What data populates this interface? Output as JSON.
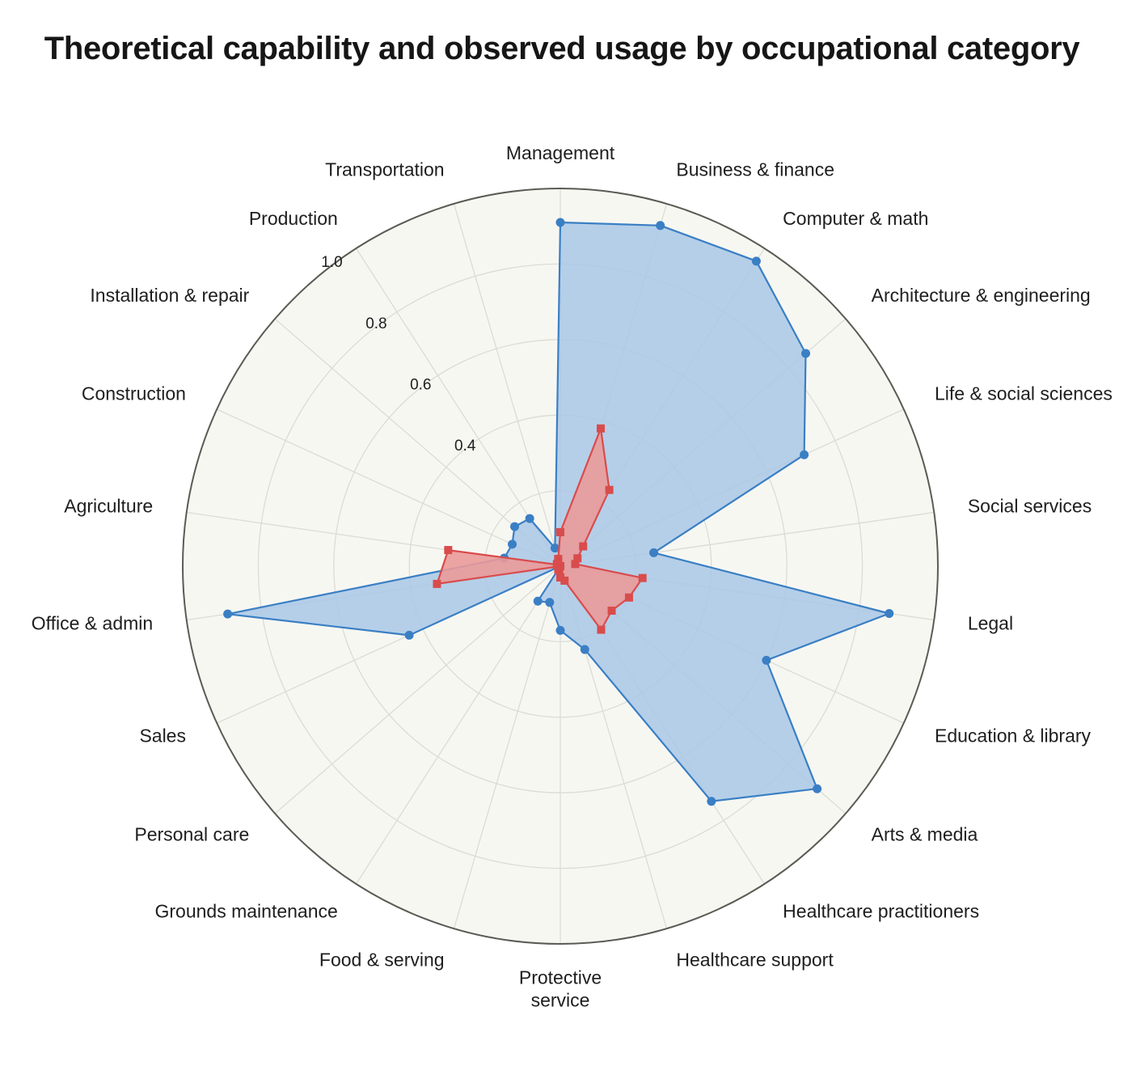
{
  "chart_data": {
    "type": "radar",
    "title": "Theoretical capability and observed usage by occupational category",
    "categories": [
      "Management",
      "Business & finance",
      "Computer & math",
      "Architecture & engineering",
      "Life & social sciences",
      "Social services",
      "Legal",
      "Education & library",
      "Arts & media",
      "Healthcare practitioners",
      "Healthcare support",
      "Protective service",
      "Food & serving",
      "Grounds maintenance",
      "Personal care",
      "Sales",
      "Office & admin",
      "Agriculture",
      "Construction",
      "Installation & repair",
      "Production",
      "Transportation"
    ],
    "series": [
      {
        "color": "#3a7fc4",
        "fill": "#a9c8e8",
        "marker": "circle",
        "values": [
          0.91,
          0.94,
          0.96,
          0.86,
          0.71,
          0.25,
          0.88,
          0.6,
          0.9,
          0.74,
          0.23,
          0.17,
          0.1,
          0.11,
          0.0,
          0.44,
          0.89,
          0.15,
          0.14,
          0.16,
          0.15,
          0.05
        ]
      },
      {
        "color": "#d94c4c",
        "fill": "#ea9a9a",
        "marker": "square",
        "values": [
          0.09,
          0.38,
          0.24,
          0.08,
          0.05,
          0.04,
          0.22,
          0.2,
          0.18,
          0.2,
          0.04,
          0.03,
          0.01,
          0.01,
          0.0,
          0.0,
          0.33,
          0.3,
          0.01,
          0.01,
          0.01,
          0.02
        ]
      }
    ],
    "radial_ticks": [
      "0.4",
      "0.6",
      "0.8",
      "1.0"
    ],
    "rmax": 1.0,
    "grid": true,
    "legend": "none"
  }
}
